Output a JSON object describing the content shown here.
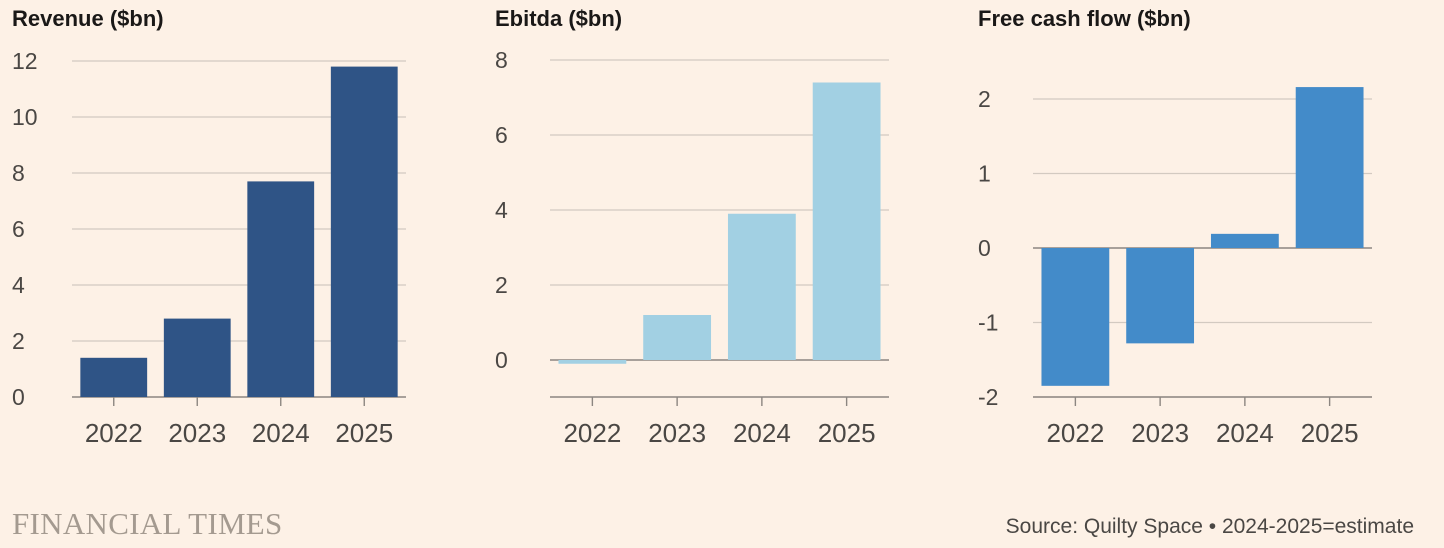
{
  "chart_data": [
    {
      "type": "bar",
      "title": "Revenue ($bn)",
      "categories": [
        "2022",
        "2023",
        "2024",
        "2025"
      ],
      "values": [
        1.4,
        2.8,
        7.7,
        11.8
      ],
      "ylim": [
        0,
        12
      ],
      "yticks": [
        0,
        2,
        4,
        6,
        8,
        10,
        12
      ],
      "ytick_labels": [
        "0",
        "2",
        "4",
        "6",
        "8",
        "10",
        "12"
      ],
      "color": "#2f5486",
      "grid": true
    },
    {
      "type": "bar",
      "title": "Ebitda ($bn)",
      "categories": [
        "2022",
        "2023",
        "2024",
        "2025"
      ],
      "values": [
        -0.1,
        1.2,
        3.9,
        7.4
      ],
      "ylim": [
        -1,
        8
      ],
      "yticks": [
        0,
        2,
        4,
        6,
        8
      ],
      "ytick_labels": [
        "0",
        "2",
        "4",
        "6",
        "8"
      ],
      "color": "#a2d0e3",
      "grid": true
    },
    {
      "type": "bar",
      "title": "Free cash flow ($bn)",
      "categories": [
        "2022",
        "2023",
        "2024",
        "2025"
      ],
      "values": [
        -1.85,
        -1.28,
        0.19,
        2.16
      ],
      "ylim": [
        -2,
        2.5
      ],
      "yticks": [
        -2,
        -1,
        0,
        1,
        2
      ],
      "ytick_labels": [
        "-2",
        "-1",
        "0",
        "1",
        "2"
      ],
      "color": "#438bc9",
      "grid": true
    }
  ],
  "footer": {
    "logo": "FINANCIAL TIMES",
    "source": "Source: Quilty Space • 2024-2025=estimate"
  }
}
